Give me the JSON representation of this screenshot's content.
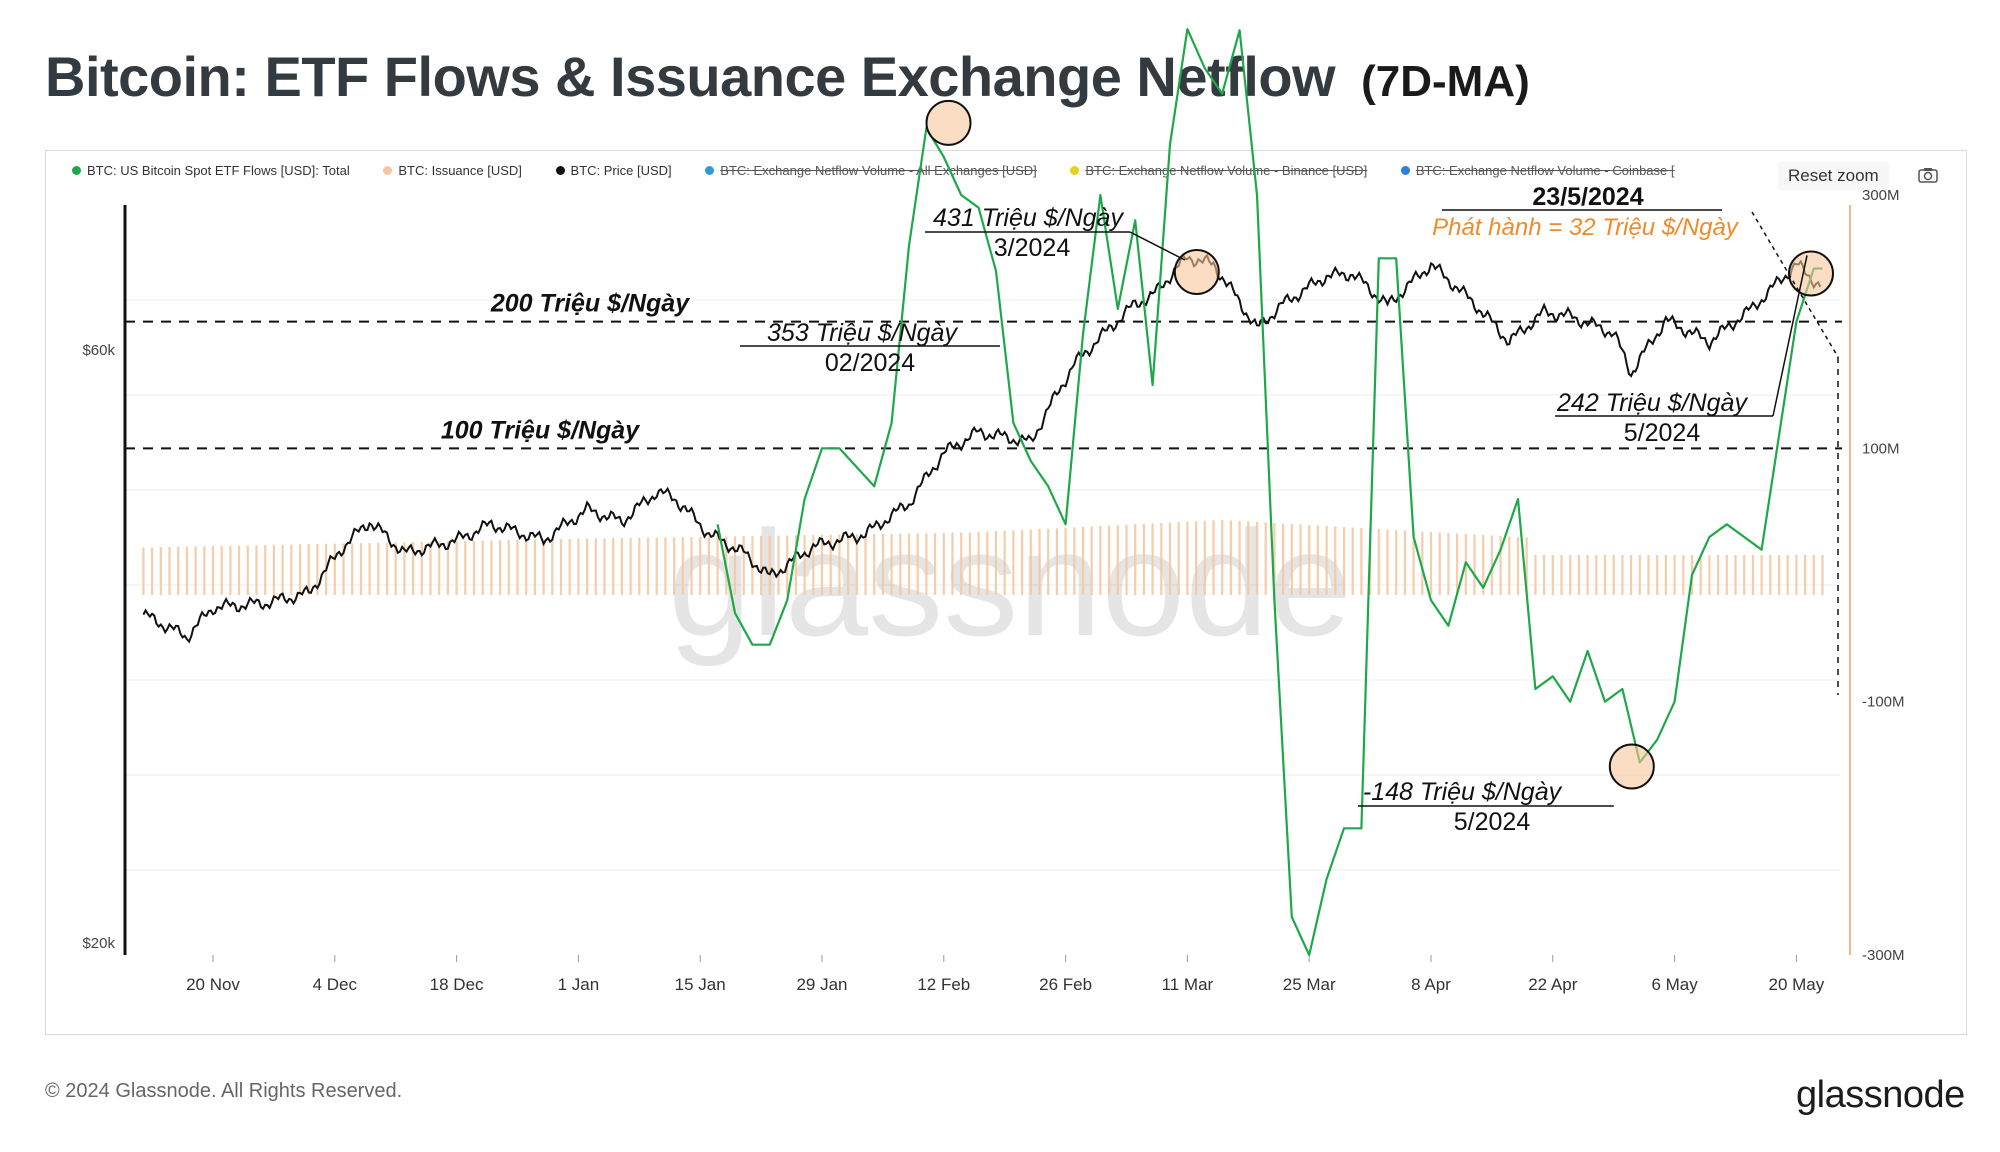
{
  "header": {
    "title": "Bitcoin: ETF Flows & Issuance Exchange Netflow",
    "subtitle": "(7D-MA)"
  },
  "legend": [
    {
      "label": "BTC: US Bitcoin Spot ETF Flows [USD]: Total",
      "color": "#1fa84a",
      "active": true
    },
    {
      "label": "BTC: Issuance [USD]",
      "color": "#f5c7a0",
      "active": true
    },
    {
      "label": "BTC: Price [USD]",
      "color": "#111111",
      "active": true
    },
    {
      "label": "BTC: Exchange Netflow Volume - All Exchanges [USD]",
      "color": "#2e9bd6",
      "active": false
    },
    {
      "label": "BTC: Exchange Netflow Volume - Binance [USD]",
      "color": "#e5d21a",
      "active": false
    },
    {
      "label": "BTC: Exchange Netflow Volume - Coinbase [",
      "color": "#2e7fd6",
      "active": false
    }
  ],
  "toolbar": {
    "reset_zoom": "Reset zoom",
    "camera_icon": "camera-icon"
  },
  "footer": {
    "copyright": "© 2024 Glassnode. All Rights Reserved.",
    "brand": "glassnode"
  },
  "watermark": "glassnode",
  "chart_data": {
    "type": "line",
    "x_ticks": [
      "20 Nov",
      "4 Dec",
      "18 Dec",
      "1 Jan",
      "15 Jan",
      "29 Jan",
      "12 Feb",
      "26 Feb",
      "11 Mar",
      "25 Mar",
      "8 Apr",
      "22 Apr",
      "6 May",
      "20 May"
    ],
    "y_left_ticks": [
      "$60k",
      "$20k"
    ],
    "y_right_ticks": [
      "300M",
      "100M",
      "-100M",
      "-300M"
    ],
    "y_right_range": [
      -300,
      300
    ],
    "y_right_unit": "M USD",
    "series": [
      {
        "name": "BTC: US Bitcoin Spot ETF Flows [USD]: Total",
        "color": "#1fa84a",
        "x": [
          "2024-01-17",
          "2024-01-19",
          "2024-01-21",
          "2024-01-23",
          "2024-01-25",
          "2024-01-27",
          "2024-01-29",
          "2024-01-31",
          "2024-02-02",
          "2024-02-04",
          "2024-02-06",
          "2024-02-08",
          "2024-02-10",
          "2024-02-12",
          "2024-02-14",
          "2024-02-16",
          "2024-02-18",
          "2024-02-20",
          "2024-02-22",
          "2024-02-24",
          "2024-02-26",
          "2024-02-28",
          "2024-03-01",
          "2024-03-03",
          "2024-03-05",
          "2024-03-07",
          "2024-03-09",
          "2024-03-11",
          "2024-03-13",
          "2024-03-15",
          "2024-03-17",
          "2024-03-19",
          "2024-03-21",
          "2024-03-23",
          "2024-03-25",
          "2024-03-27",
          "2024-03-29",
          "2024-03-31",
          "2024-04-02",
          "2024-04-04",
          "2024-04-06",
          "2024-04-08",
          "2024-04-10",
          "2024-04-12",
          "2024-04-14",
          "2024-04-16",
          "2024-04-18",
          "2024-04-20",
          "2024-04-22",
          "2024-04-24",
          "2024-04-26",
          "2024-04-28",
          "2024-04-30",
          "2024-05-02",
          "2024-05-04",
          "2024-05-06",
          "2024-05-08",
          "2024-05-10",
          "2024-05-12",
          "2024-05-14",
          "2024-05-16",
          "2024-05-18",
          "2024-05-20",
          "2024-05-22",
          "2024-05-23"
        ],
        "values": [
          40,
          -30,
          -55,
          -55,
          -20,
          60,
          100,
          100,
          85,
          70,
          120,
          260,
          353,
          330,
          300,
          290,
          240,
          120,
          90,
          70,
          40,
          190,
          300,
          210,
          280,
          150,
          340,
          431,
          400,
          380,
          430,
          300,
          -20,
          -270,
          -300,
          -240,
          -200,
          -200,
          250,
          250,
          30,
          -20,
          -40,
          10,
          -10,
          20,
          60,
          -90,
          -80,
          -100,
          -60,
          -100,
          -90,
          -148,
          -130,
          -100,
          0,
          30,
          40,
          30,
          20,
          110,
          200,
          242,
          242
        ]
      },
      {
        "name": "BTC: Issuance [USD]",
        "color": "#f5c7a0",
        "x": [
          "2023-11-12",
          "2024-01-01",
          "2024-02-15",
          "2024-03-15",
          "2024-04-19",
          "2024-04-20",
          "2024-05-23"
        ],
        "values": [
          38,
          45,
          50,
          60,
          46,
          32,
          32
        ]
      },
      {
        "name": "BTC: Price [USD]",
        "color": "#111111",
        "x": [
          "2023-11-12",
          "2023-11-17",
          "2023-11-20",
          "2023-11-26",
          "2023-12-01",
          "2023-12-05",
          "2023-12-08",
          "2023-12-12",
          "2023-12-18",
          "2023-12-22",
          "2023-12-28",
          "2024-01-02",
          "2024-01-06",
          "2024-01-10",
          "2024-01-12",
          "2024-01-16",
          "2024-01-20",
          "2024-01-23",
          "2024-01-28",
          "2024-02-03",
          "2024-02-08",
          "2024-02-12",
          "2024-02-16",
          "2024-02-22",
          "2024-02-27",
          "2024-03-01",
          "2024-03-05",
          "2024-03-07",
          "2024-03-11",
          "2024-03-14",
          "2024-03-19",
          "2024-03-22",
          "2024-03-27",
          "2024-03-30",
          "2024-04-03",
          "2024-04-08",
          "2024-04-13",
          "2024-04-17",
          "2024-04-21",
          "2024-04-24",
          "2024-04-29",
          "2024-05-01",
          "2024-05-05",
          "2024-05-10",
          "2024-05-15",
          "2024-05-20",
          "2024-05-23"
        ],
        "values": [
          37000,
          35500,
          37500,
          37800,
          38500,
          42000,
          44000,
          41500,
          42500,
          43800,
          42500,
          45000,
          44000,
          46500,
          46000,
          43000,
          41500,
          39700,
          42000,
          43000,
          45500,
          50000,
          52000,
          51000,
          59000,
          62000,
          66000,
          67000,
          72000,
          71000,
          63000,
          66000,
          69500,
          69800,
          65800,
          71000,
          66000,
          61500,
          65000,
          64500,
          62500,
          58000,
          64000,
          61500,
          65500,
          71000,
          68000
        ]
      }
    ],
    "reference_lines": [
      {
        "label": "200 Triệu $/Ngày",
        "value": 200
      },
      {
        "label": "100 Triệu $/Ngày",
        "value": 100
      }
    ],
    "annotations": [
      {
        "value_label": "431 Triệu $/Ngày",
        "period": "3/2024",
        "x": "2024-03-13",
        "y": 431
      },
      {
        "value_label": "353 Triệu $/Ngày",
        "period": "02/2024",
        "x": "2024-02-13",
        "y": 353
      },
      {
        "value_label": "242 Triệu $/Ngày",
        "period": "5/2024",
        "x": "2024-05-22",
        "y": 242
      },
      {
        "value_label": "-148 Triệu $/Ngày",
        "period": "5/2024",
        "x": "2024-05-02",
        "y": -148
      }
    ],
    "halving_annotation": {
      "date_label": "23/5/2024",
      "note": "Phát hành = 32 Triệu $/Ngày"
    }
  }
}
